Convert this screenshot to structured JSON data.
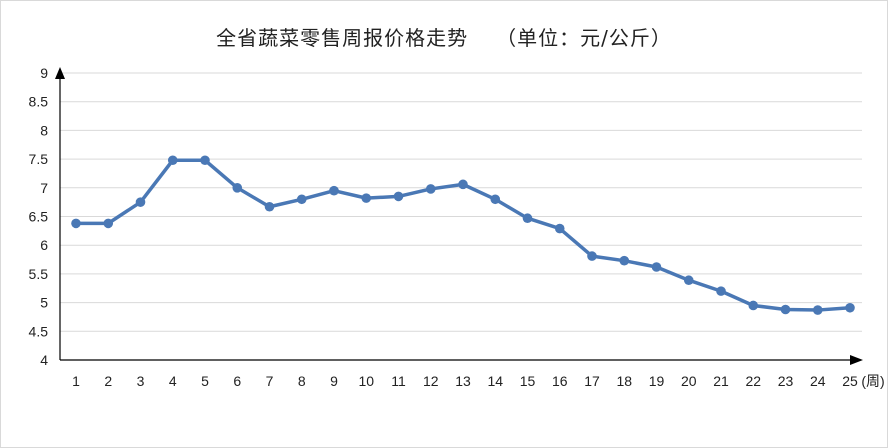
{
  "chart_data": {
    "type": "line",
    "title": "全省蔬菜零售周报价格走势",
    "subtitle": "（单位：元/公斤）",
    "xlabel": "(周)",
    "ylabel": "",
    "x": [
      1,
      2,
      3,
      4,
      5,
      6,
      7,
      8,
      9,
      10,
      11,
      12,
      13,
      14,
      15,
      16,
      17,
      18,
      19,
      20,
      21,
      22,
      23,
      24,
      25
    ],
    "series": [
      {
        "values": [
          6.38,
          6.38,
          6.75,
          7.48,
          7.48,
          7.0,
          6.67,
          6.8,
          6.95,
          6.82,
          6.85,
          6.98,
          7.06,
          6.8,
          6.47,
          6.29,
          5.81,
          5.73,
          5.62,
          5.39,
          5.2,
          4.95,
          4.88,
          4.87,
          4.91
        ]
      }
    ],
    "ylim": [
      4,
      9
    ],
    "yticks": [
      "4",
      "4.5",
      "5",
      "5.5",
      "6",
      "6.5",
      "7",
      "7.5",
      "8",
      "8.5",
      "9"
    ],
    "grid": true,
    "color": "#4a78b5"
  }
}
